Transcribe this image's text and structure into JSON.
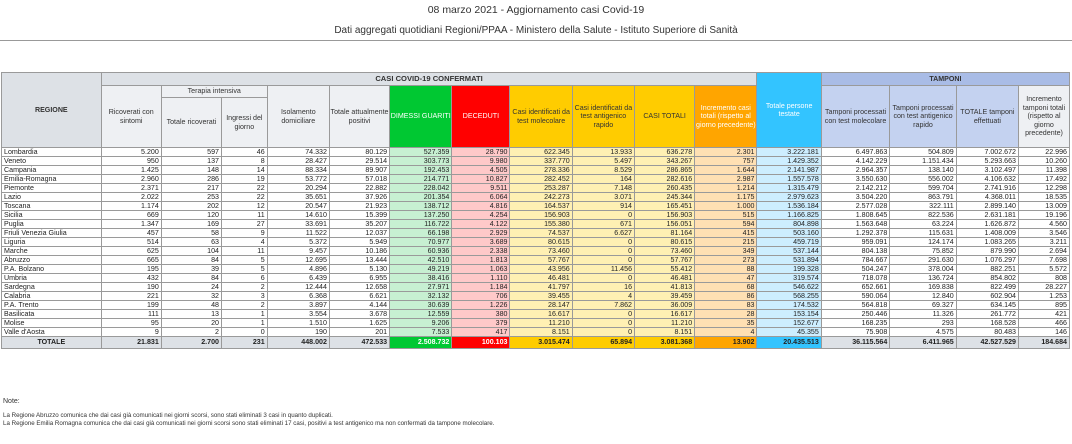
{
  "header": {
    "title": "08 marzo 2021 - Aggiornamento casi Covid-19",
    "subtitle": "Dati aggregati quotidiani Regioni/PPAA - Ministero della Salute - Istituto Superiore di Sanità"
  },
  "table": {
    "region_header": "REGIONE",
    "group_confermati": "CASI COVID-19 CONFERMATI",
    "group_ti": "Terapia intensiva",
    "group_tamponi": "TAMPONI",
    "columns": {
      "ricoverati": "Ricoverati con sintomi",
      "ti_totale": "Totale ricoverati",
      "ti_ingressi": "Ingressi del giorno",
      "isolamento": "Isolamento domiciliare",
      "positivi": "Totale attualmente positivi",
      "dimessi": "DIMESSI GUARITI",
      "deceduti": "DECEDUTI",
      "molecolare": "Casi identificati da test molecolare",
      "antigenico": "Casi identificati da test antigenico rapido",
      "totali": "CASI TOTALI",
      "incremento": "Incremento casi totali (rispetto al giorno precedente)",
      "testate": "Totale persone testate",
      "t_molecolare": "Tamponi processati con test molecolare",
      "t_antigenico": "Tamponi processati con test antigenico rapido",
      "t_totale": "TOTALE tamponi effettuati",
      "t_incremento": "Incremento tamponi totali (rispetto al giorno precedente)"
    },
    "rows": [
      [
        "Lombardia",
        "5.200",
        "597",
        "46",
        "74.332",
        "80.129",
        "527.359",
        "28.790",
        "622.345",
        "13.933",
        "636.278",
        "2.301",
        "3.222.181",
        "6.497.863",
        "504.809",
        "7.002.672",
        "22.996"
      ],
      [
        "Veneto",
        "950",
        "137",
        "8",
        "28.427",
        "29.514",
        "303.773",
        "9.980",
        "337.770",
        "5.497",
        "343.267",
        "757",
        "1.429.352",
        "4.142.229",
        "1.151.434",
        "5.293.663",
        "10.260"
      ],
      [
        "Campania",
        "1.425",
        "148",
        "14",
        "88.334",
        "89.907",
        "192.453",
        "4.505",
        "278.336",
        "8.529",
        "286.865",
        "1.644",
        "2.141.987",
        "2.964.357",
        "138.140",
        "3.102.497",
        "11.398"
      ],
      [
        "Emilia-Romagna",
        "2.960",
        "286",
        "19",
        "53.772",
        "57.018",
        "214.771",
        "10.827",
        "282.452",
        "164",
        "282.616",
        "2.987",
        "1.557.578",
        "3.550.630",
        "556.002",
        "4.106.632",
        "17.492"
      ],
      [
        "Piemonte",
        "2.371",
        "217",
        "22",
        "20.294",
        "22.882",
        "228.042",
        "9.511",
        "253.287",
        "7.148",
        "260.435",
        "1.214",
        "1.315.479",
        "2.142.212",
        "599.704",
        "2.741.916",
        "12.298"
      ],
      [
        "Lazio",
        "2.022",
        "253",
        "22",
        "35.651",
        "37.926",
        "201.354",
        "6.064",
        "242.273",
        "3.071",
        "245.344",
        "1.175",
        "2.979.623",
        "3.504.220",
        "863.791",
        "4.368.011",
        "18.535"
      ],
      [
        "Toscana",
        "1.174",
        "202",
        "12",
        "20.547",
        "21.923",
        "138.712",
        "4.816",
        "164.537",
        "914",
        "165.451",
        "1.000",
        "1.536.184",
        "2.577.028",
        "322.111",
        "2.899.140",
        "13.009"
      ],
      [
        "Sicilia",
        "669",
        "120",
        "11",
        "14.610",
        "15.399",
        "137.250",
        "4.254",
        "156.903",
        "0",
        "156.903",
        "515",
        "1.166.825",
        "1.808.645",
        "822.536",
        "2.631.181",
        "19.196"
      ],
      [
        "Puglia",
        "1.347",
        "169",
        "27",
        "33.691",
        "35.207",
        "116.722",
        "4.122",
        "155.380",
        "671",
        "156.051",
        "594",
        "804.898",
        "1.563.648",
        "63.224",
        "1.626.872",
        "4.560"
      ],
      [
        "Friuli Venezia Giulia",
        "457",
        "58",
        "9",
        "11.522",
        "12.037",
        "66.198",
        "2.929",
        "74.537",
        "6.627",
        "81.164",
        "415",
        "503.160",
        "1.292.378",
        "115.631",
        "1.408.009",
        "3.546"
      ],
      [
        "Liguria",
        "514",
        "63",
        "4",
        "5.372",
        "5.949",
        "70.977",
        "3.689",
        "80.615",
        "0",
        "80.615",
        "215",
        "459.719",
        "959.091",
        "124.174",
        "1.083.265",
        "3.211"
      ],
      [
        "Marche",
        "625",
        "104",
        "11",
        "9.457",
        "10.186",
        "60.936",
        "2.338",
        "73.460",
        "0",
        "73.460",
        "349",
        "537.144",
        "804.138",
        "75.852",
        "879.990",
        "2.694"
      ],
      [
        "Abruzzo",
        "665",
        "84",
        "5",
        "12.695",
        "13.444",
        "42.510",
        "1.813",
        "57.767",
        "0",
        "57.767",
        "273",
        "531.894",
        "784.667",
        "291.630",
        "1.076.297",
        "7.698"
      ],
      [
        "P.A. Bolzano",
        "195",
        "39",
        "5",
        "4.896",
        "5.130",
        "49.219",
        "1.063",
        "43.956",
        "11.456",
        "55.412",
        "88",
        "199.328",
        "504.247",
        "378.004",
        "882.251",
        "5.572"
      ],
      [
        "Umbria",
        "432",
        "84",
        "6",
        "6.439",
        "6.955",
        "38.416",
        "1.110",
        "46.481",
        "0",
        "46.481",
        "47",
        "319.574",
        "718.078",
        "136.724",
        "854.802",
        "808"
      ],
      [
        "Sardegna",
        "190",
        "24",
        "2",
        "12.444",
        "12.658",
        "27.971",
        "1.184",
        "41.797",
        "16",
        "41.813",
        "68",
        "546.622",
        "652.661",
        "169.838",
        "822.499",
        "28.227"
      ],
      [
        "Calabria",
        "221",
        "32",
        "3",
        "6.368",
        "6.621",
        "32.132",
        "706",
        "39.455",
        "4",
        "39.459",
        "86",
        "568.255",
        "590.064",
        "12.840",
        "602.904",
        "1.253"
      ],
      [
        "P.A. Trento",
        "199",
        "48",
        "2",
        "3.897",
        "4.144",
        "30.639",
        "1.226",
        "28.147",
        "7.862",
        "36.009",
        "83",
        "174.532",
        "564.818",
        "69.327",
        "634.145",
        "895"
      ],
      [
        "Basilicata",
        "111",
        "13",
        "1",
        "3.554",
        "3.678",
        "12.559",
        "380",
        "16.617",
        "0",
        "16.617",
        "28",
        "153.154",
        "250.446",
        "11.326",
        "261.772",
        "421"
      ],
      [
        "Molise",
        "95",
        "20",
        "1",
        "1.510",
        "1.625",
        "9.206",
        "379",
        "11.210",
        "0",
        "11.210",
        "35",
        "152.677",
        "168.235",
        "293",
        "168.528",
        "466"
      ],
      [
        "Valle d'Aosta",
        "9",
        "2",
        "0",
        "190",
        "201",
        "7.533",
        "417",
        "8.151",
        "0",
        "8.151",
        "4",
        "45.355",
        "75.908",
        "4.575",
        "80.483",
        "146"
      ]
    ],
    "total": [
      "TOTALE",
      "21.831",
      "2.700",
      "231",
      "448.002",
      "472.533",
      "2.508.732",
      "100.103",
      "3.015.474",
      "65.894",
      "3.081.368",
      "13.902",
      "20.435.513",
      "36.115.564",
      "6.411.965",
      "42.527.529",
      "184.684"
    ]
  },
  "notes": {
    "label": "Note:",
    "lines": [
      "La Regione Abruzzo comunica che dai casi già comunicati nei giorni scorsi, sono stati eliminati 3 casi in quanto duplicati.",
      "La Regione Emilia Romagna comunica che dai casi già comunicati nei giorni scorsi sono stati eliminati 17 casi, positivi a test antigenico ma non confermati da tampone molecolare."
    ]
  },
  "colors": {
    "dimessi": "#00c832",
    "deceduti": "#ff0000",
    "casi_test": "#ffcc00",
    "totali": "#ffa500",
    "persone_testate": "#33c4ff",
    "tamponi": "#a9bce6"
  }
}
